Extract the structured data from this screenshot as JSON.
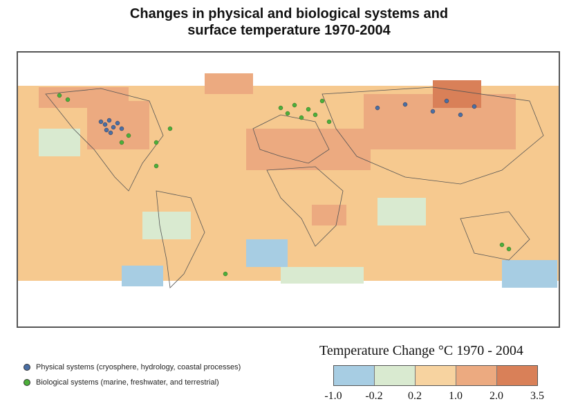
{
  "title": {
    "line1": "Changes in physical and biological systems and",
    "line2": "surface temperature 1970-2004"
  },
  "legend": {
    "physical_label": "Physical systems (cryosphere, hydrology, coastal processes)",
    "biological_label": "Biological systems (marine, freshwater, and terrestrial)",
    "physical_color": "#4a6fa5",
    "biological_color": "#4caf3a"
  },
  "scale": {
    "title": "Temperature Change °C 1970 - 2004",
    "ticks": [
      "-1.0",
      "-0.2",
      "0.2",
      "1.0",
      "2.0",
      "3.5"
    ],
    "colors": [
      "#a7cde3",
      "#d9ead0",
      "#f7d3a0",
      "#ecaa80",
      "#d98058"
    ]
  }
}
